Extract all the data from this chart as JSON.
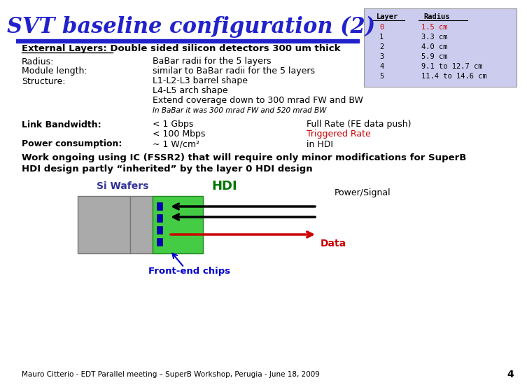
{
  "title": "SVT baseline configuration (2)",
  "title_color": "#2222CC",
  "title_fontsize": 22,
  "bg_color": "#FFFFFF",
  "table_bg": "#CCCCEE",
  "table_layers": [
    "Layer",
    "0",
    "1",
    "2",
    "3",
    "4",
    "5"
  ],
  "table_radii": [
    "Radius",
    "1.5 cm",
    "3.3 cm",
    "4.0 cm",
    "5.9 cm",
    "9.1 to 12.7 cm",
    "11.4 to 14.6 cm"
  ],
  "ext_layers_line1": "External Layers: Double sided silicon detectors 300 um thick",
  "radius_label": "Radius:",
  "radius_val": "BaBar radii for the 5 layers",
  "module_label": "Module length:",
  "module_val": "similar to BaBar radii for the 5 layers",
  "struct_label": "Structure:",
  "struct_val1": "L1-L2-L3 barrel shape",
  "struct_val2": "L4-L5 arch shape",
  "struct_val3": "Extend coverage down to 300 mrad FW and BW",
  "inbabar_note": "In BaBar it was 300 mrad FW and 520 mrad BW",
  "link_label": "Link Bandwidth:",
  "link_val1": "< 1 Gbps",
  "link_val2": "< 100 Mbps",
  "link_val3": "~ 1 W/cm²",
  "link_right1": "Full Rate (FE data push)",
  "link_right2": "Triggered Rate",
  "link_right3": "in HDI",
  "power_label": "Power consumption:",
  "bold_line1": "Work ongoing using IC (FSSR2) that will require only minor modifications for SuperB",
  "bold_line2": "HDI design partly “inherited” by the layer 0 HDI design",
  "si_wafers_label": "Si Wafers",
  "hdi_label": "HDI",
  "power_signal_label": "Power/Signal",
  "data_label": "Data",
  "frontend_label": "Front-end chips",
  "footer": "Mauro Citterio - EDT Parallel meeting – SuperB Workshop, Perugia - June 18, 2009",
  "page_num": "4"
}
